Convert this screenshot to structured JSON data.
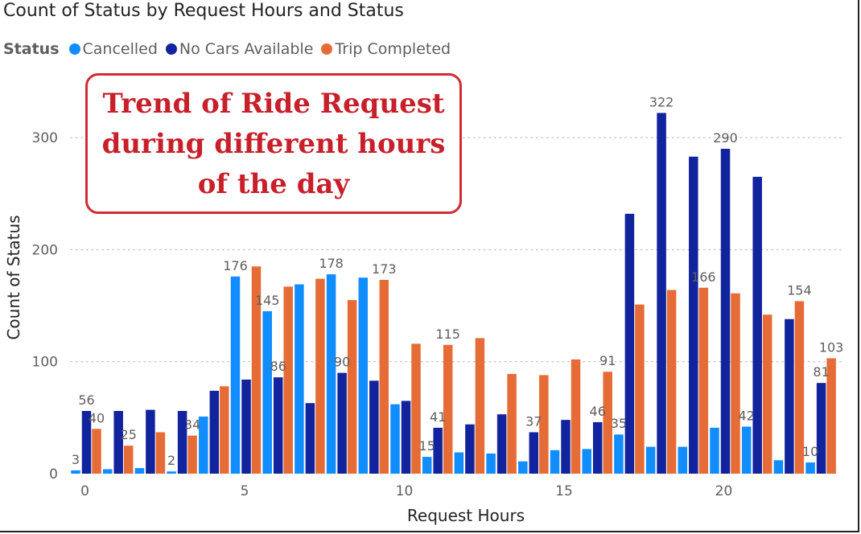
{
  "chart_data": {
    "type": "bar",
    "title": "Count of Status by Request Hours and Status",
    "legend_title": "Status",
    "legend_position": "top-left",
    "xlabel": "Request Hours",
    "ylabel": "Count of Status",
    "x": [
      0,
      1,
      2,
      3,
      4,
      5,
      6,
      7,
      8,
      9,
      10,
      11,
      12,
      13,
      14,
      15,
      16,
      17,
      18,
      19,
      20,
      21,
      22,
      23
    ],
    "x_ticks": [
      0,
      5,
      10,
      15,
      20
    ],
    "y_ticks": [
      0,
      100,
      200,
      300
    ],
    "ylim": [
      0,
      340
    ],
    "grid": true,
    "series": [
      {
        "name": "Cancelled",
        "color": "#118dff",
        "values": [
          3,
          4,
          5,
          2,
          51,
          176,
          145,
          169,
          178,
          175,
          62,
          15,
          19,
          18,
          11,
          21,
          22,
          35,
          24,
          24,
          41,
          42,
          12,
          10
        ],
        "labels": [
          "3",
          "",
          "",
          "2",
          "",
          "176",
          "145",
          "",
          "178",
          "",
          "",
          "15",
          "",
          "",
          "",
          "",
          "",
          "35",
          "",
          "",
          "",
          "42",
          "",
          "10"
        ]
      },
      {
        "name": "No Cars Available",
        "color": "#12239e",
        "values": [
          56,
          56,
          57,
          56,
          74,
          84,
          86,
          63,
          90,
          83,
          65,
          41,
          44,
          53,
          37,
          48,
          46,
          232,
          322,
          283,
          290,
          265,
          138,
          81
        ],
        "labels": [
          "56",
          "",
          "",
          "",
          "",
          "",
          "86",
          "",
          "90",
          "",
          "",
          "41",
          "",
          "",
          "37",
          "",
          "46",
          "",
          "322",
          "",
          "290",
          "",
          "",
          "81"
        ]
      },
      {
        "name": "Trip Completed",
        "color": "#e66c37",
        "values": [
          40,
          25,
          37,
          34,
          78,
          185,
          167,
          174,
          155,
          173,
          116,
          115,
          121,
          89,
          88,
          102,
          91,
          151,
          164,
          166,
          161,
          142,
          154,
          103
        ],
        "labels": [
          "40",
          "25",
          "",
          "34",
          "",
          "",
          "",
          "",
          "",
          "173",
          "",
          "115",
          "",
          "",
          "",
          "",
          "91",
          "",
          "",
          "166",
          "",
          "",
          "154",
          "103"
        ]
      }
    ],
    "annotation": "Trend of Ride Request during different hours of the day"
  }
}
